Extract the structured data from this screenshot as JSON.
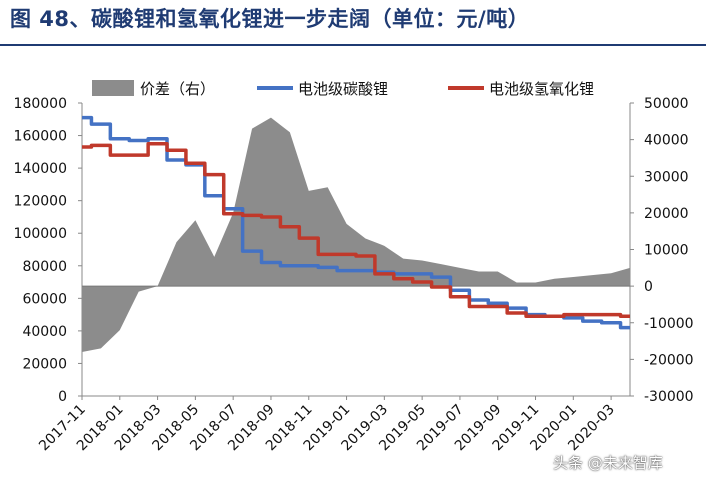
{
  "title": "图 48、碳酸锂和氢氧化锂进一步走阔（单位：元/吨）",
  "watermark": "头条 @未来智库",
  "colors": {
    "spread": "#8c8c8c",
    "carbonate": "#4472c4",
    "hydroxide": "#c0392b",
    "title": "#1f3b73"
  },
  "chart_data": {
    "type": "line",
    "title": "",
    "legend_position": "top",
    "x": [
      "2017-11",
      "2017-12",
      "2018-01",
      "2018-02",
      "2018-03",
      "2018-04",
      "2018-05",
      "2018-06",
      "2018-07",
      "2018-08",
      "2018-09",
      "2018-10",
      "2018-11",
      "2018-12",
      "2019-01",
      "2019-02",
      "2019-03",
      "2019-04",
      "2019-05",
      "2019-06",
      "2019-07",
      "2019-08",
      "2019-09",
      "2019-10",
      "2019-11",
      "2019-12",
      "2020-01",
      "2020-02",
      "2020-03",
      "2020-04"
    ],
    "x_tick_labels": [
      "2017-11",
      "2018-01",
      "2018-03",
      "2018-05",
      "2018-07",
      "2018-09",
      "2018-11",
      "2019-01",
      "2019-03",
      "2019-05",
      "2019-07",
      "2019-09",
      "2019-11",
      "2020-01",
      "2020-03"
    ],
    "y_left": {
      "range": [
        0,
        180000
      ],
      "ticks": [
        "0",
        "20000",
        "40000",
        "60000",
        "80000",
        "100000",
        "120000",
        "140000",
        "160000",
        "180000"
      ]
    },
    "y_right": {
      "range": [
        -30000,
        50000
      ],
      "ticks": [
        "-30000",
        "-20000",
        "-10000",
        "0",
        "10000",
        "20000",
        "30000",
        "40000",
        "50000"
      ]
    },
    "series": [
      {
        "name": "价差（右）",
        "type": "area",
        "axis": "right",
        "values": [
          -18000,
          -17000,
          -12000,
          -1500,
          0,
          12000,
          18000,
          8000,
          20000,
          43000,
          46000,
          42000,
          26000,
          27000,
          17000,
          13000,
          11000,
          7500,
          7000,
          6000,
          5000,
          4000,
          4000,
          1000,
          1000,
          2000,
          2500,
          3000,
          3500,
          5000
        ]
      },
      {
        "name": "电池级碳酸锂",
        "type": "line",
        "axis": "left",
        "values": [
          171000,
          167000,
          158000,
          157000,
          158000,
          145000,
          142000,
          123000,
          115000,
          89000,
          82000,
          80000,
          80000,
          79000,
          77000,
          77000,
          76000,
          75000,
          75000,
          73000,
          65000,
          59000,
          57000,
          54000,
          50000,
          49000,
          48000,
          46000,
          45000,
          42000
        ]
      },
      {
        "name": "电池级氢氧化锂",
        "type": "line",
        "axis": "left",
        "values": [
          153000,
          154000,
          148000,
          148000,
          155000,
          151000,
          143000,
          136000,
          112000,
          111000,
          110000,
          104000,
          97000,
          87000,
          87000,
          86000,
          75000,
          72000,
          70000,
          67000,
          61000,
          55000,
          55000,
          51000,
          49000,
          49000,
          50000,
          50000,
          50000,
          49000
        ]
      }
    ]
  }
}
